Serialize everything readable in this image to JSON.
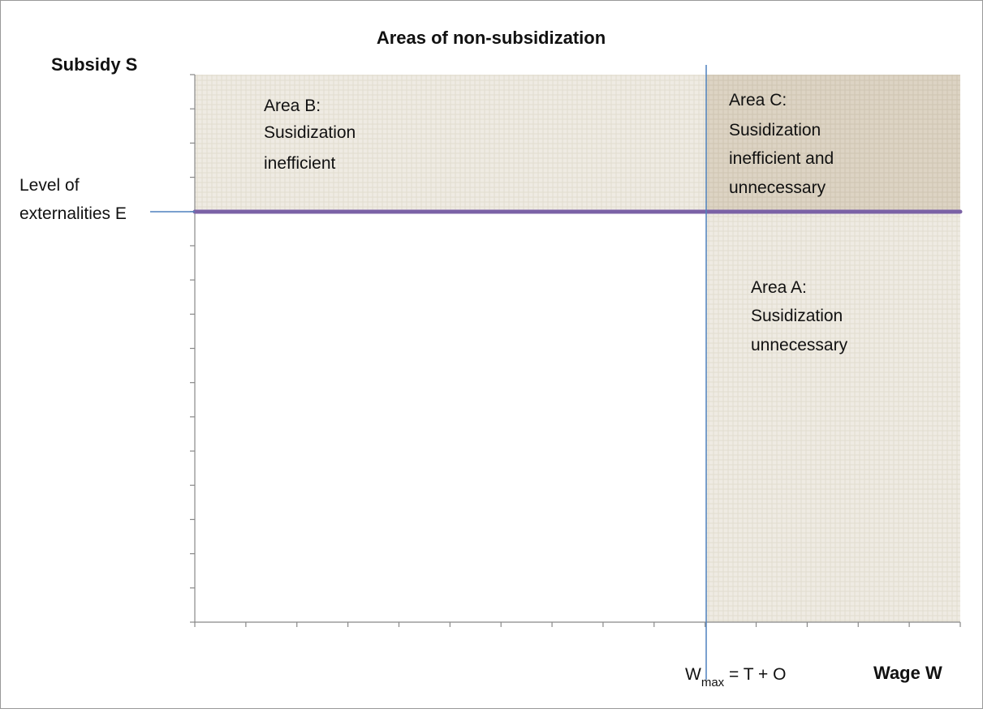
{
  "title": "Areas of non-subsidization",
  "y_axis_label": "Subsidy S",
  "x_axis_label": "Wage W",
  "level_label": {
    "lines": [
      "Level of",
      "externalities E"
    ]
  },
  "wmax_label": {
    "main": "W",
    "sub": "max",
    "rest": " = T + O"
  },
  "areas": [
    {
      "lines": [
        "Area B:",
        "Susidization",
        "inefficient"
      ]
    },
    {
      "lines": [
        "Area C:",
        "Susidization",
        "inefficient and",
        "unnecessary"
      ]
    },
    {
      "lines": [
        "Area A:",
        "Susidization",
        "unnecessary"
      ]
    }
  ]
}
